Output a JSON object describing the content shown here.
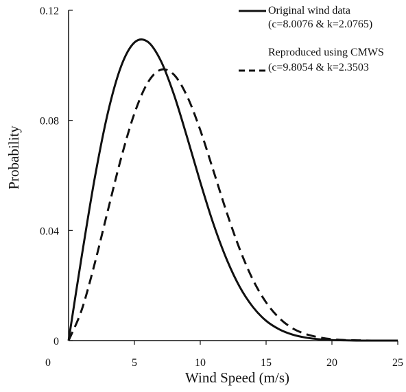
{
  "chart_data": {
    "type": "line",
    "xlabel": "Wind Speed (m/s)",
    "ylabel": "Probability",
    "xlim": [
      0,
      25
    ],
    "ylim": [
      0,
      0.12
    ],
    "x_ticks": [
      0,
      5,
      10,
      15,
      20,
      25
    ],
    "x_tick_labels": [
      "0",
      "5",
      "10",
      "15",
      "20",
      "25"
    ],
    "y_ticks": [
      0,
      0.04,
      0.08,
      0.12
    ],
    "y_tick_labels": [
      "0",
      "0.04",
      "0.08",
      "0.12"
    ],
    "grid": false,
    "legend_position": "top-right",
    "series": [
      {
        "name": "Original wind data",
        "name_line2": "(c=8.0076 & k=2.0765)",
        "style": "solid",
        "color": "#111111",
        "x": [
          0,
          1,
          2,
          3,
          4,
          5,
          6,
          7,
          8,
          9,
          10,
          11,
          12,
          13,
          14,
          15,
          16,
          17,
          18,
          19,
          20,
          21,
          22,
          23,
          24,
          25
        ],
        "y": [
          0,
          0.0307,
          0.0594,
          0.0831,
          0.0998,
          0.1083,
          0.1086,
          0.1017,
          0.0894,
          0.0739,
          0.0576,
          0.0424,
          0.0296,
          0.0195,
          0.0122,
          0.0072,
          0.0041,
          0.0022,
          0.0011,
          0.0005,
          0.0002,
          0.0001,
          0.0,
          0.0,
          0.0,
          0.0
        ]
      },
      {
        "name": "Reproduced using CMWS",
        "name_line2": "(c=9.8054 & k=2.3503",
        "style": "dashed",
        "color": "#111111",
        "x": [
          0,
          1,
          2,
          3,
          4,
          5,
          6,
          7,
          8,
          9,
          10,
          11,
          12,
          13,
          14,
          15,
          16,
          17,
          18,
          19,
          20,
          21,
          22,
          23,
          24,
          25
        ],
        "y": [
          0,
          0.0112,
          0.0283,
          0.0476,
          0.0665,
          0.0825,
          0.0936,
          0.0984,
          0.0966,
          0.0888,
          0.0765,
          0.0617,
          0.0467,
          0.0332,
          0.0221,
          0.0139,
          0.0082,
          0.0045,
          0.0024,
          0.0012,
          0.0005,
          0.0002,
          0.0001,
          0.0,
          0.0,
          0.0
        ]
      }
    ]
  }
}
